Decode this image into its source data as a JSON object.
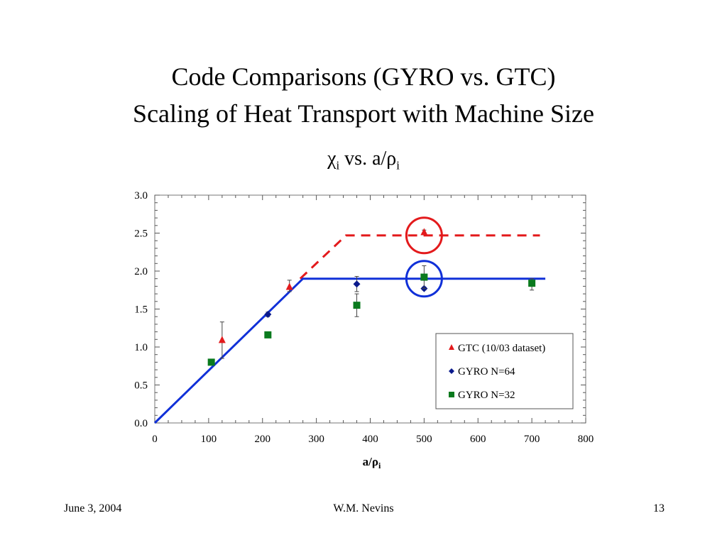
{
  "slide": {
    "title_line1": "Code Comparisons (GYRO vs. GTC)",
    "title_line2": "Scaling of Heat Transport with Machine Size",
    "subtitle_main": "χ",
    "subtitle_sub": "i",
    "subtitle_mid": " vs. a/ρ",
    "subtitle_sub2": "i"
  },
  "footer": {
    "date": "June 3, 2004",
    "author": "W.M. Nevins",
    "page": "13"
  },
  "chart_data": {
    "type": "scatter",
    "xlim": [
      0,
      800
    ],
    "ylim": [
      0,
      3.0
    ],
    "xticks": [
      "0",
      "100",
      "200",
      "300",
      "400",
      "500",
      "600",
      "700",
      "800"
    ],
    "xtick_values": [
      0,
      100,
      200,
      300,
      400,
      500,
      600,
      700,
      800
    ],
    "yticks": [
      "0.0",
      "0.5",
      "1.0",
      "1.5",
      "2.0",
      "2.5",
      "3.0"
    ],
    "ytick_values": [
      0,
      0.5,
      1.0,
      1.5,
      2.0,
      2.5,
      3.0
    ],
    "xlabel_main": "a/ρ",
    "xlabel_sub": "i",
    "grid": false,
    "legend_position": "bottom-right",
    "series": [
      {
        "name": "GTC (10/03 dataset)",
        "marker": "triangle",
        "color": "#e31a1c",
        "points": [
          {
            "x": 125,
            "y": 1.09,
            "err_lo": 0.24,
            "err_hi": 0.24
          },
          {
            "x": 250,
            "y": 1.79,
            "err_lo": 0.06,
            "err_hi": 0.09
          },
          {
            "x": 500,
            "y": 2.51,
            "err_lo": 0.03,
            "err_hi": 0.03
          }
        ]
      },
      {
        "name": "GYRO N=64",
        "marker": "diamond",
        "color": "#0a1a8c",
        "points": [
          {
            "x": 210,
            "y": 1.43,
            "err_lo": 0.03,
            "err_hi": 0.03
          },
          {
            "x": 375,
            "y": 1.83,
            "err_lo": 0.1,
            "err_hi": 0.1
          },
          {
            "x": 500,
            "y": 1.77,
            "err_lo": 0.02,
            "err_hi": 0.02
          }
        ]
      },
      {
        "name": "GYRO N=32",
        "marker": "square",
        "color": "#0a7a1e",
        "points": [
          {
            "x": 105,
            "y": 0.8,
            "err_lo": 0.02,
            "err_hi": 0.02
          },
          {
            "x": 210,
            "y": 1.16,
            "err_lo": 0.02,
            "err_hi": 0.02
          },
          {
            "x": 375,
            "y": 1.55,
            "err_lo": 0.15,
            "err_hi": 0.15
          },
          {
            "x": 500,
            "y": 1.92,
            "err_lo": 0.15,
            "err_hi": 0.15
          },
          {
            "x": 700,
            "y": 1.84,
            "err_lo": 0.09,
            "err_hi": 0.06
          }
        ]
      }
    ],
    "fit_lines": [
      {
        "color": "#e31a1c",
        "style": "dashed",
        "points": [
          [
            270,
            1.9
          ],
          [
            355,
            2.47
          ],
          [
            715,
            2.47
          ]
        ]
      },
      {
        "color": "#1030d8",
        "style": "solid",
        "points": [
          [
            0,
            0
          ],
          [
            275,
            1.9
          ],
          [
            725,
            1.9
          ]
        ]
      }
    ],
    "highlight_circles": [
      {
        "color": "#e31a1c",
        "x": 500,
        "y": 2.47
      },
      {
        "color": "#1030d8",
        "x": 500,
        "y": 1.9
      }
    ]
  }
}
